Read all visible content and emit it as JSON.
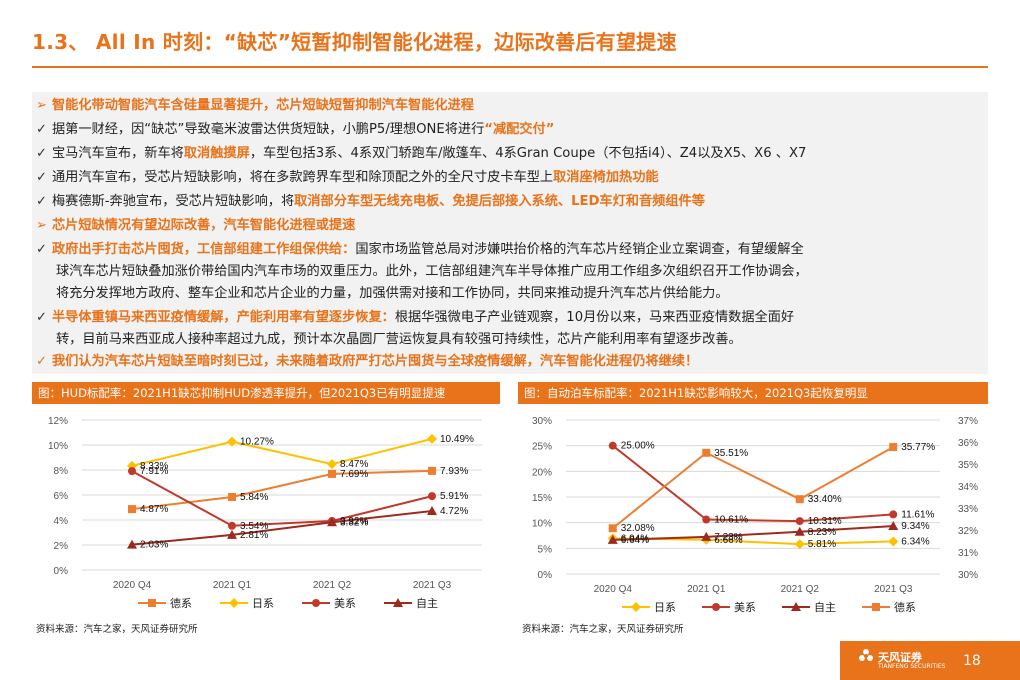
{
  "title": "1.3、 All In 时刻：“缺芯”短暂抑制智能化进程，边际改善后有望提速",
  "bullets": {
    "b1": {
      "mark": "➢",
      "text": "智能化带动智能汽车含硅量显著提升，芯片短缺短暂抑制汽车智能化进程"
    },
    "b2": {
      "mark": "✓",
      "pre": "据第一财经，因“缺芯”导致毫米波雷达供货短缺，小鹏P5/理想ONE将进行",
      "hl": "“减配交付”"
    },
    "b3": {
      "mark": "✓",
      "pre": "宝马汽车宣布，新车将",
      "hl": "取消触摸屏",
      "post": "，车型包括3系、4系双门轿跑车/敞篷车、4系Gran Coupe（不包括i4）、Z4以及X5、X6 、X7"
    },
    "b4": {
      "mark": "✓",
      "pre": "通用汽车宣布，受芯片短缺影响，将在多款跨界车型和除顶配之外的全尺寸皮卡车型上",
      "hl": "取消座椅加热功能"
    },
    "b5": {
      "mark": "✓",
      "pre": "梅赛德斯-奔驰宣布，受芯片短缺影响，将",
      "hl": "取消部分车型无线充电板、免提后部接入系统、LED车灯和音频组件等"
    },
    "b6": {
      "mark": "➢",
      "text": "芯片短缺情况有望边际改善，汽车智能化进程或提速"
    },
    "b7": {
      "mark": "✓",
      "hl": "政府出手打击芯片囤货，工信部组建工作组保供给：",
      "post": "国家市场监管总局对涉嫌哄抬价格的汽车芯片经销企业立案调查，有望缓解全",
      "cont1": "球汽车芯片短缺叠加涨价带给国内汽车市场的双重压力。此外，工信部组建汽车半导体推广应用工作组多次组织召开工作协调会，",
      "cont2": "将充分发挥地方政府、整车企业和芯片企业的力量，加强供需对接和工作协同，共同来推动提升汽车芯片供给能力。"
    },
    "b8": {
      "mark": "✓",
      "hl": "半导体重镇马来西亚疫情缓解，产能利用率有望逐步恢复：",
      "post": "根据华强微电子产业链观察，10月份以来，马来西亚疫情数据全面好",
      "cont1": "转，目前马来西亚成人接种率超过九成，预计本次晶圆厂营运恢复具有较强可持续性，芯片产能利用率有望逐步改善。"
    },
    "b9": {
      "mark": "✓",
      "text": "我们认为汽车芯片短缺至暗时刻已过，未来随着政府严打芯片囤货与全球疫情缓解，汽车智能化进程仍将继续！"
    }
  },
  "chart_data": [
    {
      "type": "line",
      "title": "图：HUD标配率：2021H1缺芯抑制HUD渗透率提升，但2021Q3已有明显提速",
      "categories": [
        "2020 Q4",
        "2021 Q1",
        "2021 Q2",
        "2021 Q3"
      ],
      "ylim": [
        0,
        12
      ],
      "yticks": [
        "0%",
        "2%",
        "4%",
        "6%",
        "8%",
        "10%",
        "12%"
      ],
      "series": [
        {
          "name": "德系",
          "values": [
            4.87,
            5.84,
            7.69,
            7.93
          ],
          "labels": [
            "4.87%",
            "5.84%",
            "7.69%",
            "7.93%"
          ],
          "color": "#ed7d31",
          "marker": "square"
        },
        {
          "name": "日系",
          "values": [
            8.33,
            10.27,
            8.47,
            10.49
          ],
          "labels": [
            "8.33%",
            "10.27%",
            "8.47%",
            "10.49%"
          ],
          "color": "#ffc000",
          "marker": "diamond"
        },
        {
          "name": "美系",
          "values": [
            7.91,
            3.54,
            3.92,
            5.91
          ],
          "labels": [
            "7.91%",
            "3.54%",
            "3.92%",
            "5.91%"
          ],
          "color": "#c0392b",
          "marker": "circle"
        },
        {
          "name": "自主",
          "values": [
            2.03,
            2.81,
            3.82,
            4.72
          ],
          "labels": [
            "2.03%",
            "2.81%",
            "3.82%",
            "4.72%"
          ],
          "color": "#9e2a1e",
          "marker": "triangle"
        }
      ],
      "legend": "bottom",
      "source": "资料来源：汽车之家，天风证券研究所"
    },
    {
      "type": "line",
      "title": "图：自动泊车标配率：2021H1缺芯影响较大，2021Q3起恢复明显",
      "categories": [
        "2020 Q4",
        "2021 Q1",
        "2021 Q2",
        "2021 Q3"
      ],
      "ylim": [
        0,
        30
      ],
      "y2lim": [
        30,
        37
      ],
      "yticks": [
        "0%",
        "5%",
        "10%",
        "15%",
        "20%",
        "25%",
        "30%"
      ],
      "y2ticks": [
        "30%",
        "31%",
        "32%",
        "33%",
        "34%",
        "35%",
        "36%",
        "37%"
      ],
      "series": [
        {
          "name": "日系",
          "values": [
            6.94,
            6.66,
            5.81,
            6.34
          ],
          "labels": [
            "6.94%",
            "6.66%",
            "5.81%",
            "6.34%"
          ],
          "color": "#ffc000",
          "marker": "diamond",
          "axis": "left"
        },
        {
          "name": "美系",
          "values": [
            25.0,
            10.61,
            10.31,
            11.61
          ],
          "labels": [
            "25.00%",
            "10.61%",
            "10.31%",
            "11.61%"
          ],
          "color": "#c0392b",
          "marker": "circle",
          "axis": "left"
        },
        {
          "name": "自主",
          "values": [
            6.64,
            7.23,
            8.23,
            9.34
          ],
          "labels": [
            "6.64%",
            "7.23%",
            "8.23%",
            "9.34%"
          ],
          "color": "#9e2a1e",
          "marker": "triangle",
          "axis": "left"
        },
        {
          "name": "德系",
          "values": [
            32.08,
            35.51,
            33.4,
            35.77
          ],
          "labels": [
            "32.08%",
            "35.51%",
            "33.40%",
            "35.77%"
          ],
          "color": "#ed7d31",
          "marker": "square",
          "axis": "right"
        }
      ],
      "legend": "bottom",
      "source": "资料来源：汽车之家，天风证券研究所"
    }
  ],
  "footer": {
    "brand": "天风证券",
    "brand_sub": "TIANFENG SECURITIES",
    "page": "18"
  }
}
